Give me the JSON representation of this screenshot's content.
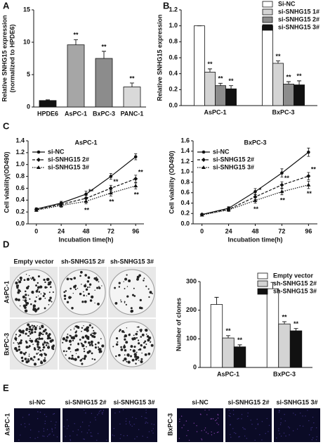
{
  "panel_labels": [
    "A",
    "B",
    "C",
    "D",
    "E"
  ],
  "chart_data": [
    {
      "type": "bar",
      "ylabel": [
        "Relative SNHG15 expression",
        "(normalized to HPDE6)"
      ],
      "categories": [
        "HPDE6",
        "AsPC-1",
        "BxPC-3",
        "PANC-1"
      ],
      "values": [
        1,
        9.6,
        7.5,
        3.1
      ],
      "errors": [
        0.1,
        0.8,
        1.1,
        0.6
      ],
      "colors": [
        "#111111",
        "#a6a6a6",
        "#8c8c8c",
        "#d9d9d9"
      ],
      "annotations": [
        null,
        "**",
        "**",
        "**"
      ],
      "ylim": [
        0,
        15
      ],
      "yticks": [
        0,
        5,
        10,
        15
      ]
    },
    {
      "type": "bar",
      "ylabel": [
        "Relative SNHG15 expression"
      ],
      "categories": [
        "AsPC-1",
        "BxPC-3"
      ],
      "legend": "upper right",
      "series": [
        {
          "name": "Si-NC",
          "color": "#ffffff",
          "values": [
            1,
            1
          ],
          "errors": [
            0,
            0
          ],
          "annotations": [
            null,
            null
          ]
        },
        {
          "name": "si-SNHG15 1#",
          "color": "#d4d4d4",
          "values": [
            0.42,
            0.53
          ],
          "errors": [
            0.04,
            0.03
          ],
          "annotations": [
            "**",
            "**"
          ]
        },
        {
          "name": "si-SNHG15 2#",
          "color": "#8c8c8c",
          "values": [
            0.25,
            0.27
          ],
          "errors": [
            0.03,
            0.03
          ],
          "annotations": [
            "**",
            "**"
          ]
        },
        {
          "name": "si-SNHG15 3#",
          "color": "#111111",
          "values": [
            0.21,
            0.26
          ],
          "errors": [
            0.04,
            0.05
          ],
          "annotations": [
            "**",
            "**"
          ]
        }
      ],
      "ylim": [
        0,
        1.2
      ],
      "yticks": [
        {
          "value": 0,
          "label": "0.0"
        },
        0.2,
        0.4,
        0.6,
        0.8,
        {
          "value": 1,
          "label": "1.0"
        },
        1.2
      ]
    },
    {
      "type": "line",
      "title": "AsPC-1",
      "xlabel": "Incubation time(h)",
      "ylabel": [
        "Cell viability(OD490)"
      ],
      "x": [
        0,
        24,
        48,
        72,
        96
      ],
      "xlim": [
        -8,
        104
      ],
      "xticks": [
        0,
        24,
        48,
        72,
        96
      ],
      "legend": "upper left",
      "series": [
        {
          "name": "si-NC",
          "color": "#111111",
          "linestyle": "solid",
          "marker": "circle",
          "values": [
            0.25,
            0.35,
            0.5,
            0.8,
            1.13
          ],
          "errors": [
            0.02,
            0.03,
            0.05,
            0.05,
            0.05
          ],
          "annotations": [
            null,
            null,
            null,
            null,
            null
          ]
        },
        {
          "name": "si-SNHG15 2#",
          "color": "#111111",
          "linestyle": "dashed",
          "marker": "diamond",
          "values": [
            0.24,
            0.33,
            0.43,
            0.6,
            0.76
          ],
          "errors": [
            0.02,
            0.03,
            0.05,
            0.05,
            0.06
          ],
          "annotations": [
            null,
            null,
            "**",
            "**",
            "**"
          ]
        },
        {
          "name": "si-SNHG15 3#",
          "color": "#111111",
          "linestyle": "dotted",
          "marker": "triangle",
          "values": [
            0.23,
            0.31,
            0.38,
            0.52,
            0.64
          ],
          "errors": [
            0.02,
            0.03,
            0.04,
            0.05,
            0.05
          ],
          "annotations": [
            null,
            null,
            "**",
            "**",
            "**"
          ]
        }
      ],
      "ylim": [
        0,
        1.4
      ],
      "yticks": [
        {
          "value": 0,
          "label": "0.0"
        },
        0.2,
        0.4,
        0.6,
        0.8,
        {
          "value": 1,
          "label": "1.0"
        },
        1.2,
        1.4
      ]
    },
    {
      "type": "line",
      "title": "BxPC-3",
      "xlabel": "Incubation time(h)",
      "ylabel": [
        "Cell viability (OD490)"
      ],
      "x": [
        0,
        24,
        48,
        72,
        96
      ],
      "xlim": [
        -8,
        104
      ],
      "xticks": [
        0,
        24,
        48,
        72,
        96
      ],
      "legend": "upper left",
      "series": [
        {
          "name": "si-NC",
          "color": "#111111",
          "linestyle": "solid",
          "marker": "circle",
          "values": [
            0.18,
            0.3,
            0.62,
            0.98,
            1.38
          ],
          "errors": [
            0.02,
            0.03,
            0.06,
            0.08,
            0.08
          ],
          "annotations": [
            null,
            null,
            null,
            null,
            null
          ]
        },
        {
          "name": "si-SNHG15 2#",
          "color": "#111111",
          "linestyle": "dashed",
          "marker": "diamond",
          "values": [
            0.18,
            0.28,
            0.52,
            0.75,
            0.92
          ],
          "errors": [
            0.02,
            0.03,
            0.05,
            0.06,
            0.07
          ],
          "annotations": [
            null,
            null,
            "*",
            "**",
            "**"
          ]
        },
        {
          "name": "si-SNHG15 3#",
          "color": "#111111",
          "linestyle": "dotted",
          "marker": "triangle",
          "values": [
            0.17,
            0.27,
            0.45,
            0.62,
            0.75
          ],
          "errors": [
            0.02,
            0.03,
            0.05,
            0.06,
            0.07
          ],
          "annotations": [
            null,
            null,
            "**",
            "**",
            "**"
          ]
        }
      ],
      "ylim": [
        0,
        1.6
      ],
      "yticks": [
        {
          "value": 0,
          "label": "0.0"
        },
        0.2,
        0.4,
        0.6,
        0.8,
        {
          "value": 1,
          "label": "1.0"
        },
        1.2,
        1.4,
        1.6
      ]
    },
    {
      "type": "bar",
      "ylabel": [
        "Number of clones"
      ],
      "categories": [
        "AsPC-1",
        "BxPC-3"
      ],
      "legend": "upper right",
      "series": [
        {
          "name": "Empty vector",
          "color": "#ffffff",
          "values": [
            220,
            275
          ],
          "errors": [
            25,
            22
          ],
          "annotations": [
            null,
            null
          ]
        },
        {
          "name": "sh-SNHG15 2#",
          "color": "#d4d4d4",
          "values": [
            103,
            152
          ],
          "errors": [
            8,
            8
          ],
          "annotations": [
            "**",
            "**"
          ]
        },
        {
          "name": "sh-SNHG15 3#",
          "color": "#111111",
          "values": [
            72,
            128
          ],
          "errors": [
            7,
            8
          ],
          "annotations": [
            "**",
            "**"
          ]
        }
      ],
      "ylim": [
        0,
        300
      ],
      "yticks": [
        0,
        100,
        200,
        300
      ]
    }
  ],
  "colony_assay": {
    "columns": [
      "Empty vector",
      "sh-SNHG15 2#",
      "sh-SNHG15 3#"
    ],
    "rows": [
      "AsPC-1",
      "BxPC-3"
    ]
  },
  "fluorescence": {
    "groups": [
      {
        "label": "AsPC-1",
        "columns": [
          "si-NC",
          "si-SNHG15 2#",
          "si-SNHG15 3#"
        ]
      },
      {
        "label": "BxPC-3",
        "columns": [
          "si-NC",
          "si-SNHG15 2#",
          "si-SNHG15 3#"
        ]
      }
    ]
  }
}
